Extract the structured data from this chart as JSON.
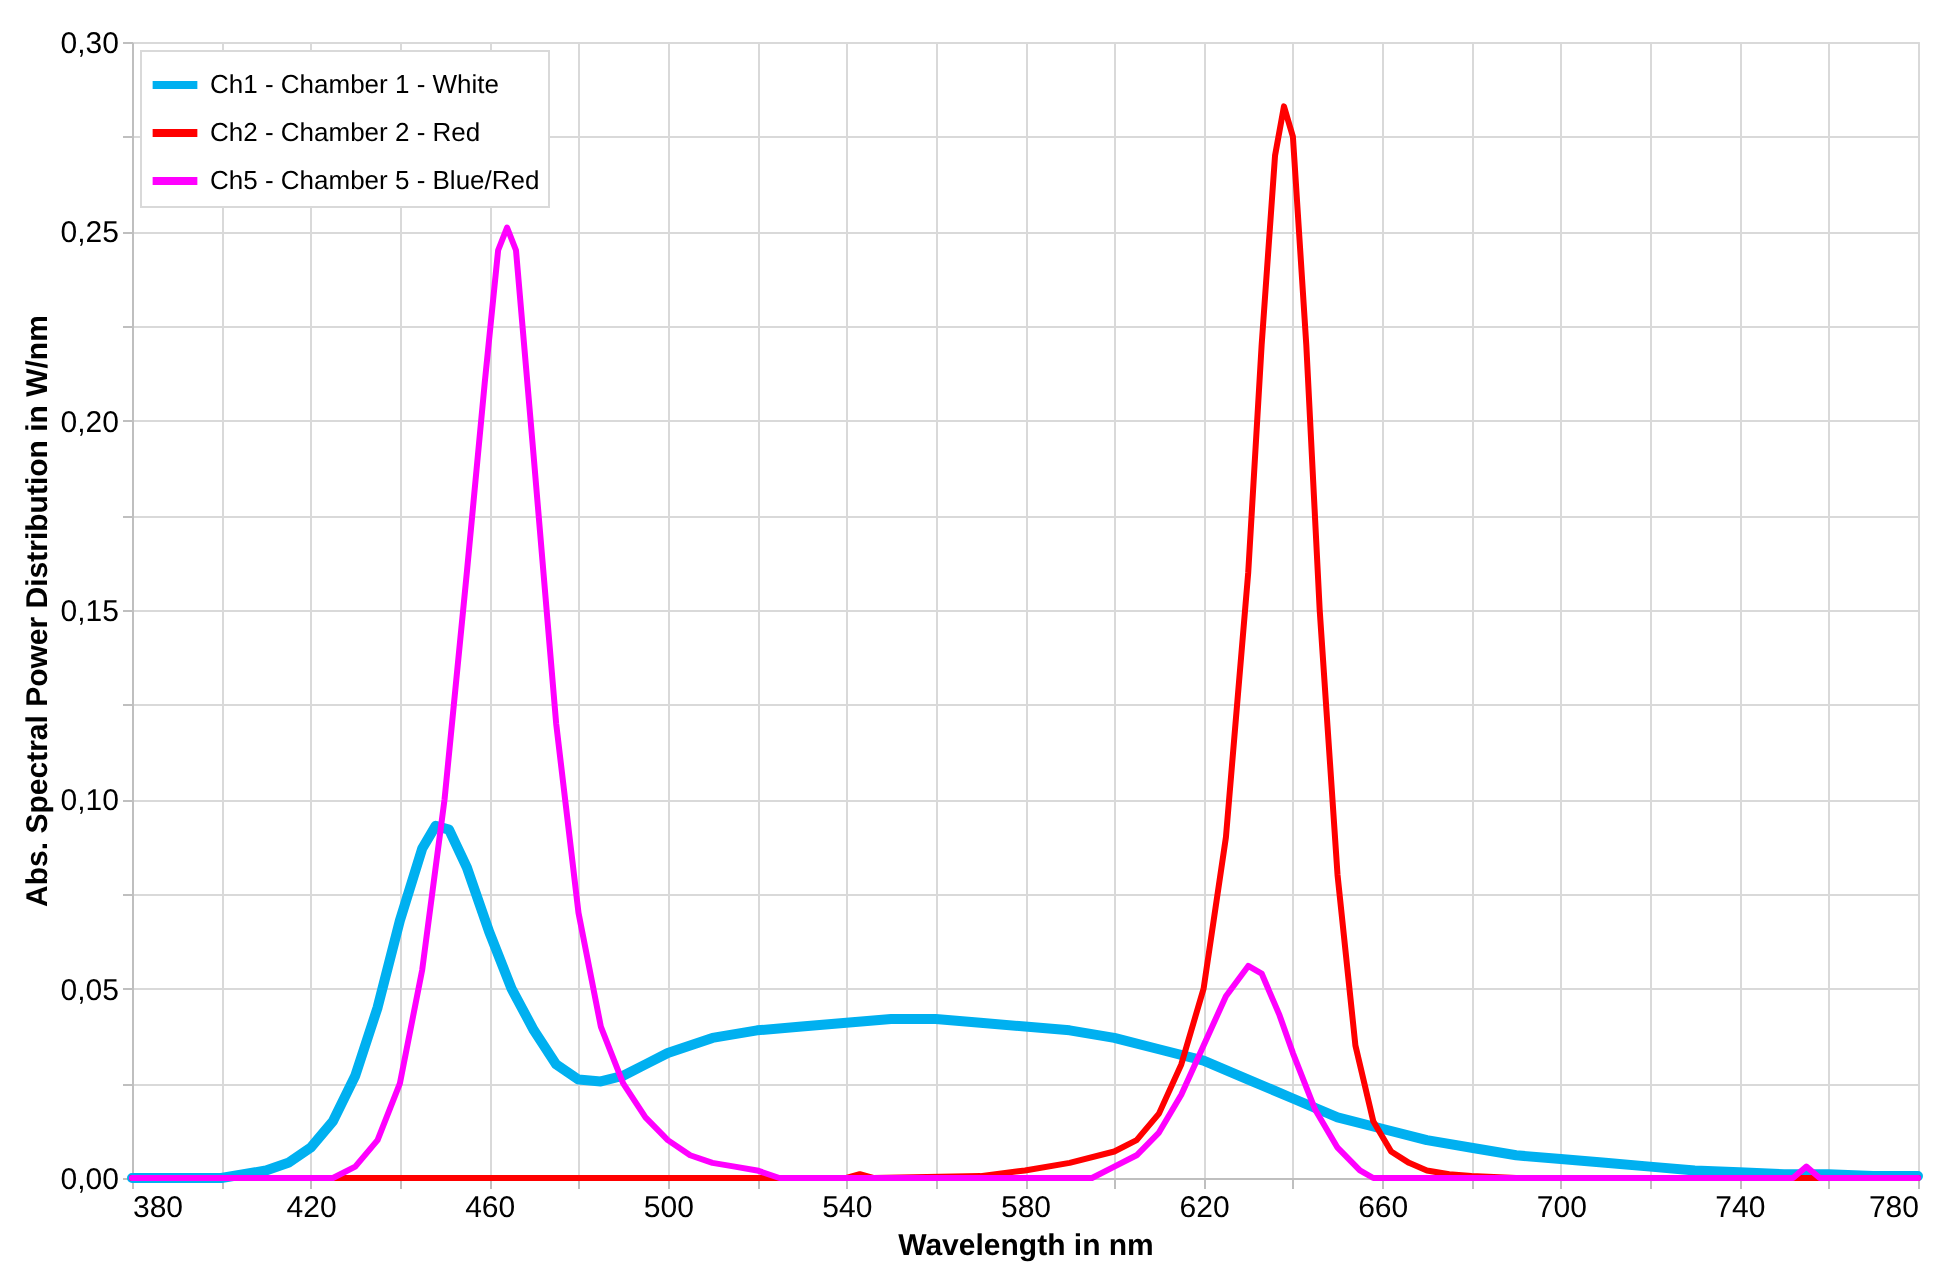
{
  "chart_data": {
    "type": "line",
    "xlabel": "Wavelength in nm",
    "ylabel": "Abs. Spectral Power Distribution in W/nm",
    "xlim": [
      380,
      780
    ],
    "ylim": [
      0,
      0.3
    ],
    "xticks": [
      380,
      {
        "value": 400,
        "label": null
      },
      420,
      {
        "value": 440,
        "label": null
      },
      460,
      {
        "value": 480,
        "label": null
      },
      500,
      {
        "value": 520,
        "label": null
      },
      540,
      {
        "value": 560,
        "label": null
      },
      580,
      {
        "value": 600,
        "label": null
      },
      620,
      {
        "value": 640,
        "label": null
      },
      660,
      {
        "value": 680,
        "label": null
      },
      700,
      {
        "value": 720,
        "label": null
      },
      740,
      {
        "value": 760,
        "label": null
      },
      780
    ],
    "yticks": [
      {
        "value": 0,
        "label": "0,00"
      },
      {
        "value": 0.025,
        "label": null
      },
      {
        "value": 0.05,
        "label": "0,05"
      },
      {
        "value": 0.075,
        "label": null
      },
      {
        "value": 0.1,
        "label": "0,10"
      },
      {
        "value": 0.125,
        "label": null
      },
      {
        "value": 0.15,
        "label": "0,15"
      },
      {
        "value": 0.175,
        "label": null
      },
      {
        "value": 0.2,
        "label": "0,20"
      },
      {
        "value": 0.225,
        "label": null
      },
      {
        "value": 0.25,
        "label": "0,25"
      },
      {
        "value": 0.275,
        "label": null
      },
      {
        "value": 0.3,
        "label": "0,30"
      }
    ],
    "grid": true,
    "legend": "top left",
    "marker": "none",
    "line_style": "solid",
    "series": [
      {
        "name": "Ch1 - Chamber 1 - White",
        "color": "#00b0f0",
        "x": [
          380,
          390,
          400,
          405,
          410,
          415,
          420,
          425,
          430,
          435,
          440,
          445,
          448,
          451,
          455,
          460,
          465,
          470,
          475,
          480,
          485,
          490,
          495,
          500,
          510,
          520,
          530,
          540,
          550,
          560,
          570,
          580,
          590,
          600,
          610,
          620,
          630,
          640,
          650,
          660,
          670,
          680,
          690,
          700,
          710,
          720,
          730,
          740,
          750,
          760,
          770,
          780
        ],
        "values": [
          0,
          0,
          0,
          0.001,
          0.002,
          0.004,
          0.008,
          0.015,
          0.027,
          0.045,
          0.068,
          0.087,
          0.093,
          0.092,
          0.082,
          0.065,
          0.05,
          0.039,
          0.03,
          0.026,
          0.0255,
          0.027,
          0.03,
          0.033,
          0.037,
          0.039,
          0.04,
          0.041,
          0.042,
          0.042,
          0.041,
          0.04,
          0.039,
          0.037,
          0.034,
          0.031,
          0.026,
          0.021,
          0.016,
          0.013,
          0.01,
          0.008,
          0.006,
          0.005,
          0.004,
          0.003,
          0.002,
          0.0015,
          0.001,
          0.001,
          0.0005,
          0.0005
        ]
      },
      {
        "name": "Ch2 - Chamber 2 - Red",
        "color": "#ff0000",
        "x": [
          380,
          540,
          543,
          546,
          570,
          580,
          590,
          600,
          605,
          610,
          615,
          620,
          625,
          630,
          633,
          636,
          638,
          640,
          643,
          646,
          650,
          654,
          658,
          662,
          666,
          670,
          675,
          680,
          690,
          780
        ],
        "values": [
          0,
          0,
          0.001,
          0,
          0.0005,
          0.002,
          0.004,
          0.007,
          0.01,
          0.017,
          0.03,
          0.05,
          0.09,
          0.16,
          0.22,
          0.27,
          0.283,
          0.275,
          0.22,
          0.15,
          0.08,
          0.035,
          0.015,
          0.007,
          0.004,
          0.002,
          0.001,
          0.0005,
          0,
          0
        ]
      },
      {
        "name": "Ch5 - Chamber 5 - Blue/Red",
        "color": "#ff00ff",
        "x": [
          380,
          425,
          430,
          435,
          440,
          445,
          450,
          455,
          459,
          462,
          464,
          466,
          470,
          475,
          480,
          485,
          490,
          495,
          500,
          505,
          510,
          515,
          520,
          525,
          595,
          600,
          605,
          610,
          615,
          620,
          625,
          630,
          633,
          637,
          640,
          645,
          650,
          655,
          658,
          752,
          755,
          758,
          780
        ],
        "values": [
          0,
          0,
          0.003,
          0.01,
          0.025,
          0.055,
          0.1,
          0.16,
          0.21,
          0.245,
          0.251,
          0.245,
          0.19,
          0.12,
          0.07,
          0.04,
          0.025,
          0.016,
          0.01,
          0.006,
          0.004,
          0.003,
          0.002,
          0,
          0,
          0.003,
          0.006,
          0.012,
          0.022,
          0.035,
          0.048,
          0.056,
          0.054,
          0.043,
          0.033,
          0.018,
          0.008,
          0.002,
          0,
          0,
          0.003,
          0,
          0
        ]
      }
    ]
  }
}
